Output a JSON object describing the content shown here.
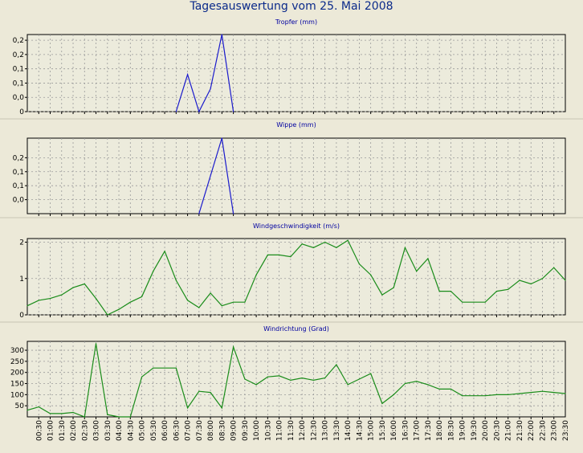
{
  "title": "Tagesauswertung vom 25. Mai 2008",
  "colors": {
    "panel_bg": "#ecebdc",
    "grid": "#9a9a9a",
    "blue": "#1a1acc",
    "green": "#1a8c1a",
    "title": "#0000a0"
  },
  "chart_data": [
    {
      "type": "line",
      "title": "Tropfer (mm)",
      "series_color": "blue",
      "ylim": [
        0,
        0.27
      ],
      "yticks": [
        0,
        0.05,
        0.1,
        0.15,
        0.2,
        0.25
      ],
      "ytick_labels": [
        "0",
        "0,0",
        "0,1",
        "0,1",
        "0,2",
        "0,2"
      ],
      "x": [
        "06:30",
        "07:00",
        "07:30",
        "08:00",
        "08:30",
        "09:00"
      ],
      "values": [
        0,
        0.13,
        0,
        0.08,
        0.27,
        0
      ]
    },
    {
      "type": "line",
      "title": "Wippe (mm)",
      "series_color": "blue",
      "ylim": [
        0,
        0.27
      ],
      "yticks": [
        0.05,
        0.1,
        0.15,
        0.2
      ],
      "ytick_labels": [
        "0,0",
        "0,1",
        "0,1",
        "0,2"
      ],
      "x": [
        "07:30",
        "08:30",
        "09:00"
      ],
      "values": [
        0,
        0.27,
        0
      ]
    },
    {
      "type": "line",
      "title": "Windgeschwindigkeit (m/s)",
      "series_color": "green",
      "ylim": [
        0,
        2.1
      ],
      "yticks": [
        0,
        1,
        2
      ],
      "ytick_labels": [
        "0",
        "1",
        "2"
      ],
      "x": [
        "00:00",
        "00:30",
        "01:00",
        "01:30",
        "02:00",
        "02:30",
        "03:00",
        "03:30",
        "04:00",
        "04:30",
        "05:00",
        "05:30",
        "06:00",
        "06:30",
        "07:00",
        "07:30",
        "08:00",
        "08:30",
        "09:00",
        "09:30",
        "10:00",
        "10:30",
        "11:00",
        "11:30",
        "12:00",
        "12:30",
        "13:00",
        "13:30",
        "14:00",
        "14:30",
        "15:00",
        "15:30",
        "16:00",
        "16:30",
        "17:00",
        "17:30",
        "18:00",
        "18:30",
        "19:00",
        "19:30",
        "20:00",
        "20:30",
        "21:00",
        "21:30",
        "22:00",
        "22:30",
        "23:00",
        "23:30"
      ],
      "values": [
        0.25,
        0.4,
        0.45,
        0.55,
        0.75,
        0.85,
        0.45,
        0,
        0.15,
        0.35,
        0.5,
        1.2,
        1.75,
        0.95,
        0.4,
        0.2,
        0.6,
        0.25,
        0.35,
        0.35,
        1.1,
        1.65,
        1.65,
        1.6,
        1.95,
        1.85,
        2.0,
        1.85,
        2.05,
        1.4,
        1.1,
        0.55,
        0.75,
        1.85,
        1.2,
        1.55,
        0.65,
        0.65,
        0.35,
        0.35,
        0.35,
        0.65,
        0.7,
        0.95,
        0.85,
        1.0,
        1.3,
        0.95
      ]
    },
    {
      "type": "line",
      "title": "Windrichtung (Grad)",
      "series_color": "green",
      "ylim": [
        0,
        340
      ],
      "yticks": [
        50,
        100,
        150,
        200,
        250,
        300
      ],
      "ytick_labels": [
        "50",
        "100",
        "150",
        "200",
        "250",
        "300"
      ],
      "x": [
        "00:00",
        "00:30",
        "01:00",
        "01:30",
        "02:00",
        "02:30",
        "03:00",
        "03:30",
        "04:00",
        "04:30",
        "05:00",
        "05:30",
        "06:00",
        "06:30",
        "07:00",
        "07:30",
        "08:00",
        "08:30",
        "09:00",
        "09:30",
        "10:00",
        "10:30",
        "11:00",
        "11:30",
        "12:00",
        "12:30",
        "13:00",
        "13:30",
        "14:00",
        "14:30",
        "15:00",
        "15:30",
        "16:00",
        "16:30",
        "17:00",
        "17:30",
        "18:00",
        "18:30",
        "19:00",
        "19:30",
        "20:00",
        "20:30",
        "21:00",
        "21:30",
        "22:00",
        "22:30",
        "23:00",
        "23:30"
      ],
      "values": [
        30,
        45,
        15,
        15,
        20,
        0,
        330,
        10,
        0,
        0,
        180,
        220,
        220,
        220,
        40,
        115,
        110,
        40,
        315,
        170,
        145,
        180,
        185,
        165,
        175,
        165,
        175,
        235,
        145,
        170,
        195,
        60,
        100,
        150,
        160,
        145,
        125,
        125,
        95,
        95,
        95,
        100,
        100,
        105,
        110,
        115,
        110,
        105
      ]
    }
  ],
  "x_tick_labels": [
    "00:30",
    "01:00",
    "01:30",
    "02:00",
    "02:30",
    "03:00",
    "03:30",
    "04:00",
    "04:30",
    "05:00",
    "05:30",
    "06:00",
    "06:30",
    "07:00",
    "07:30",
    "08:00",
    "08:30",
    "09:00",
    "09:30",
    "10:00",
    "10:30",
    "11:00",
    "11:30",
    "12:00",
    "12:30",
    "13:00",
    "13:30",
    "14:00",
    "14:30",
    "15:00",
    "15:30",
    "16:00",
    "16:30",
    "17:00",
    "17:30",
    "18:00",
    "18:30",
    "19:00",
    "19:30",
    "20:00",
    "20:30",
    "21:00",
    "21:30",
    "22:00",
    "22:30",
    "23:00",
    "23:30"
  ]
}
